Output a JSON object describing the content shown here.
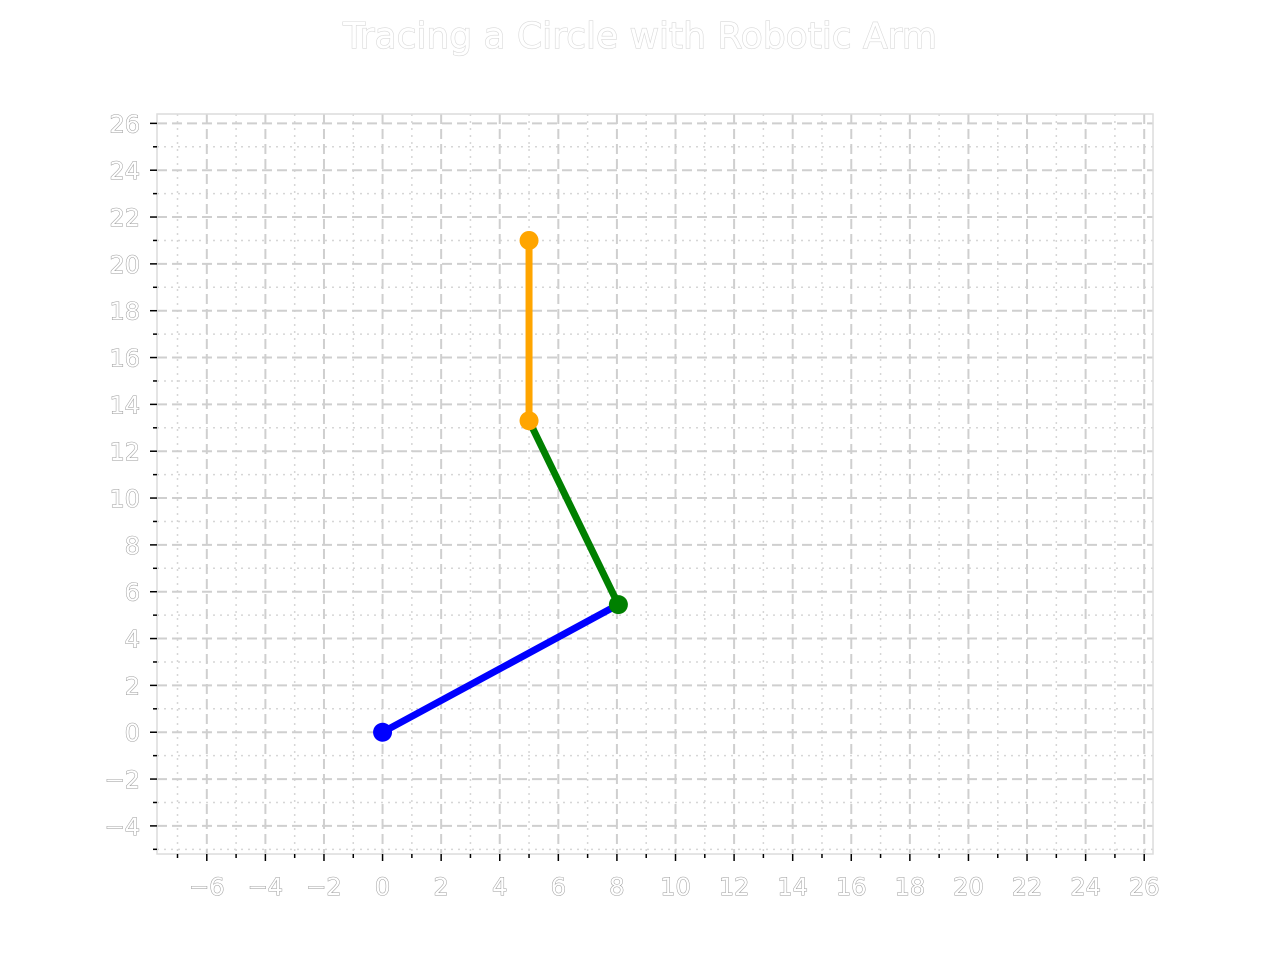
{
  "chart_data": {
    "type": "line",
    "title": "Tracing a Circle with Robotic Arm",
    "xlabel": "",
    "ylabel": "",
    "xlim": [
      -7.7,
      26.3
    ],
    "ylim": [
      -5.2,
      26.4
    ],
    "xticks": [
      -6,
      -4,
      -2,
      0,
      2,
      4,
      6,
      8,
      10,
      12,
      14,
      16,
      18,
      20,
      22,
      24,
      26
    ],
    "yticks": [
      -4,
      -2,
      0,
      2,
      4,
      6,
      8,
      10,
      12,
      14,
      16,
      18,
      20,
      22,
      24,
      26
    ],
    "xtick_labels": [
      "−6",
      "−4",
      "−2",
      "0",
      "2",
      "4",
      "6",
      "8",
      "10",
      "12",
      "14",
      "16",
      "18",
      "20",
      "22",
      "24",
      "26"
    ],
    "ytick_labels": [
      "−4",
      "−2",
      "0",
      "2",
      "4",
      "6",
      "8",
      "10",
      "12",
      "14",
      "16",
      "18",
      "20",
      "22",
      "24",
      "26"
    ],
    "minor_step": 1,
    "grid": true,
    "series": [
      {
        "color": "#0000ff",
        "x": [
          0,
          8.05
        ],
        "y": [
          0,
          5.45
        ]
      },
      {
        "color": "#008000",
        "x": [
          8.05,
          5.0
        ],
        "y": [
          5.45,
          13.3
        ]
      },
      {
        "color": "#ffa500",
        "x": [
          5.0,
          5.0
        ],
        "y": [
          13.3,
          21.0
        ]
      }
    ],
    "joints": [
      {
        "color": "#0000ff",
        "x": 0,
        "y": 0
      },
      {
        "color": "#008000",
        "x": 8.05,
        "y": 5.45
      },
      {
        "color": "#ffa500",
        "x": 5.0,
        "y": 13.3
      },
      {
        "color": "#ffa500",
        "x": 5.0,
        "y": 21.0
      }
    ]
  }
}
